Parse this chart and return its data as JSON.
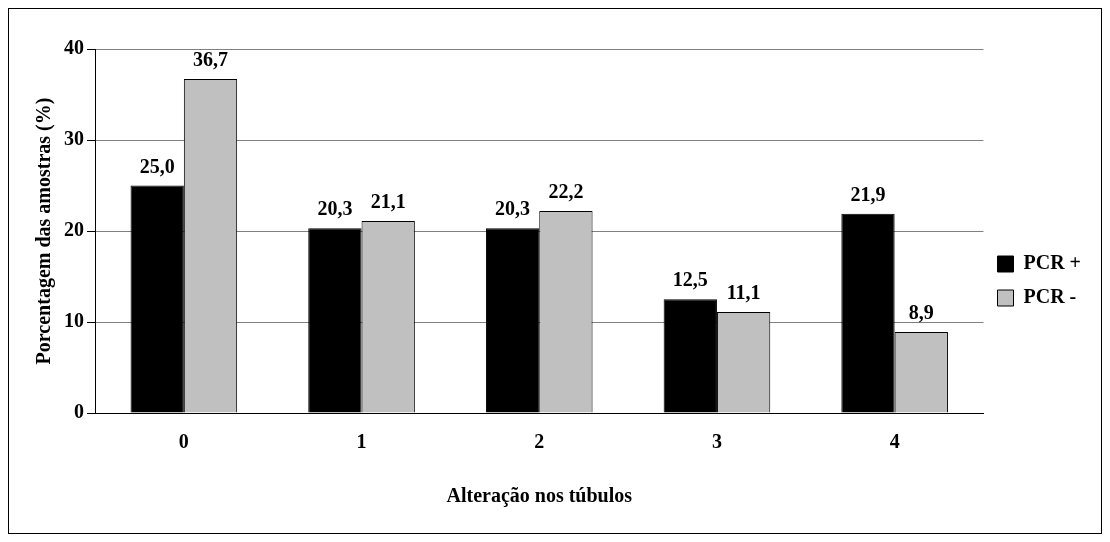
{
  "chart_data": {
    "type": "bar",
    "xlabel": "Alteração nos túbulos",
    "ylabel": "Porcentagem das amostras (%)",
    "categories": [
      "0",
      "1",
      "2",
      "3",
      "4"
    ],
    "series": [
      {
        "name": "PCR +",
        "color": "#000000",
        "values": [
          25.0,
          20.3,
          20.3,
          12.5,
          21.9
        ],
        "value_labels": [
          "25,0",
          "20,3",
          "20,3",
          "12,5",
          "21,9"
        ]
      },
      {
        "name": "PCR -",
        "color": "#c0c0c0",
        "values": [
          36.7,
          21.1,
          22.2,
          11.1,
          8.9
        ],
        "value_labels": [
          "36,7",
          "21,1",
          "22,2",
          "11,1",
          "8,9"
        ]
      }
    ],
    "ylim": [
      0,
      40
    ],
    "yticks": [
      0,
      10,
      20,
      30,
      40
    ],
    "grid": "y",
    "legend": "right"
  }
}
